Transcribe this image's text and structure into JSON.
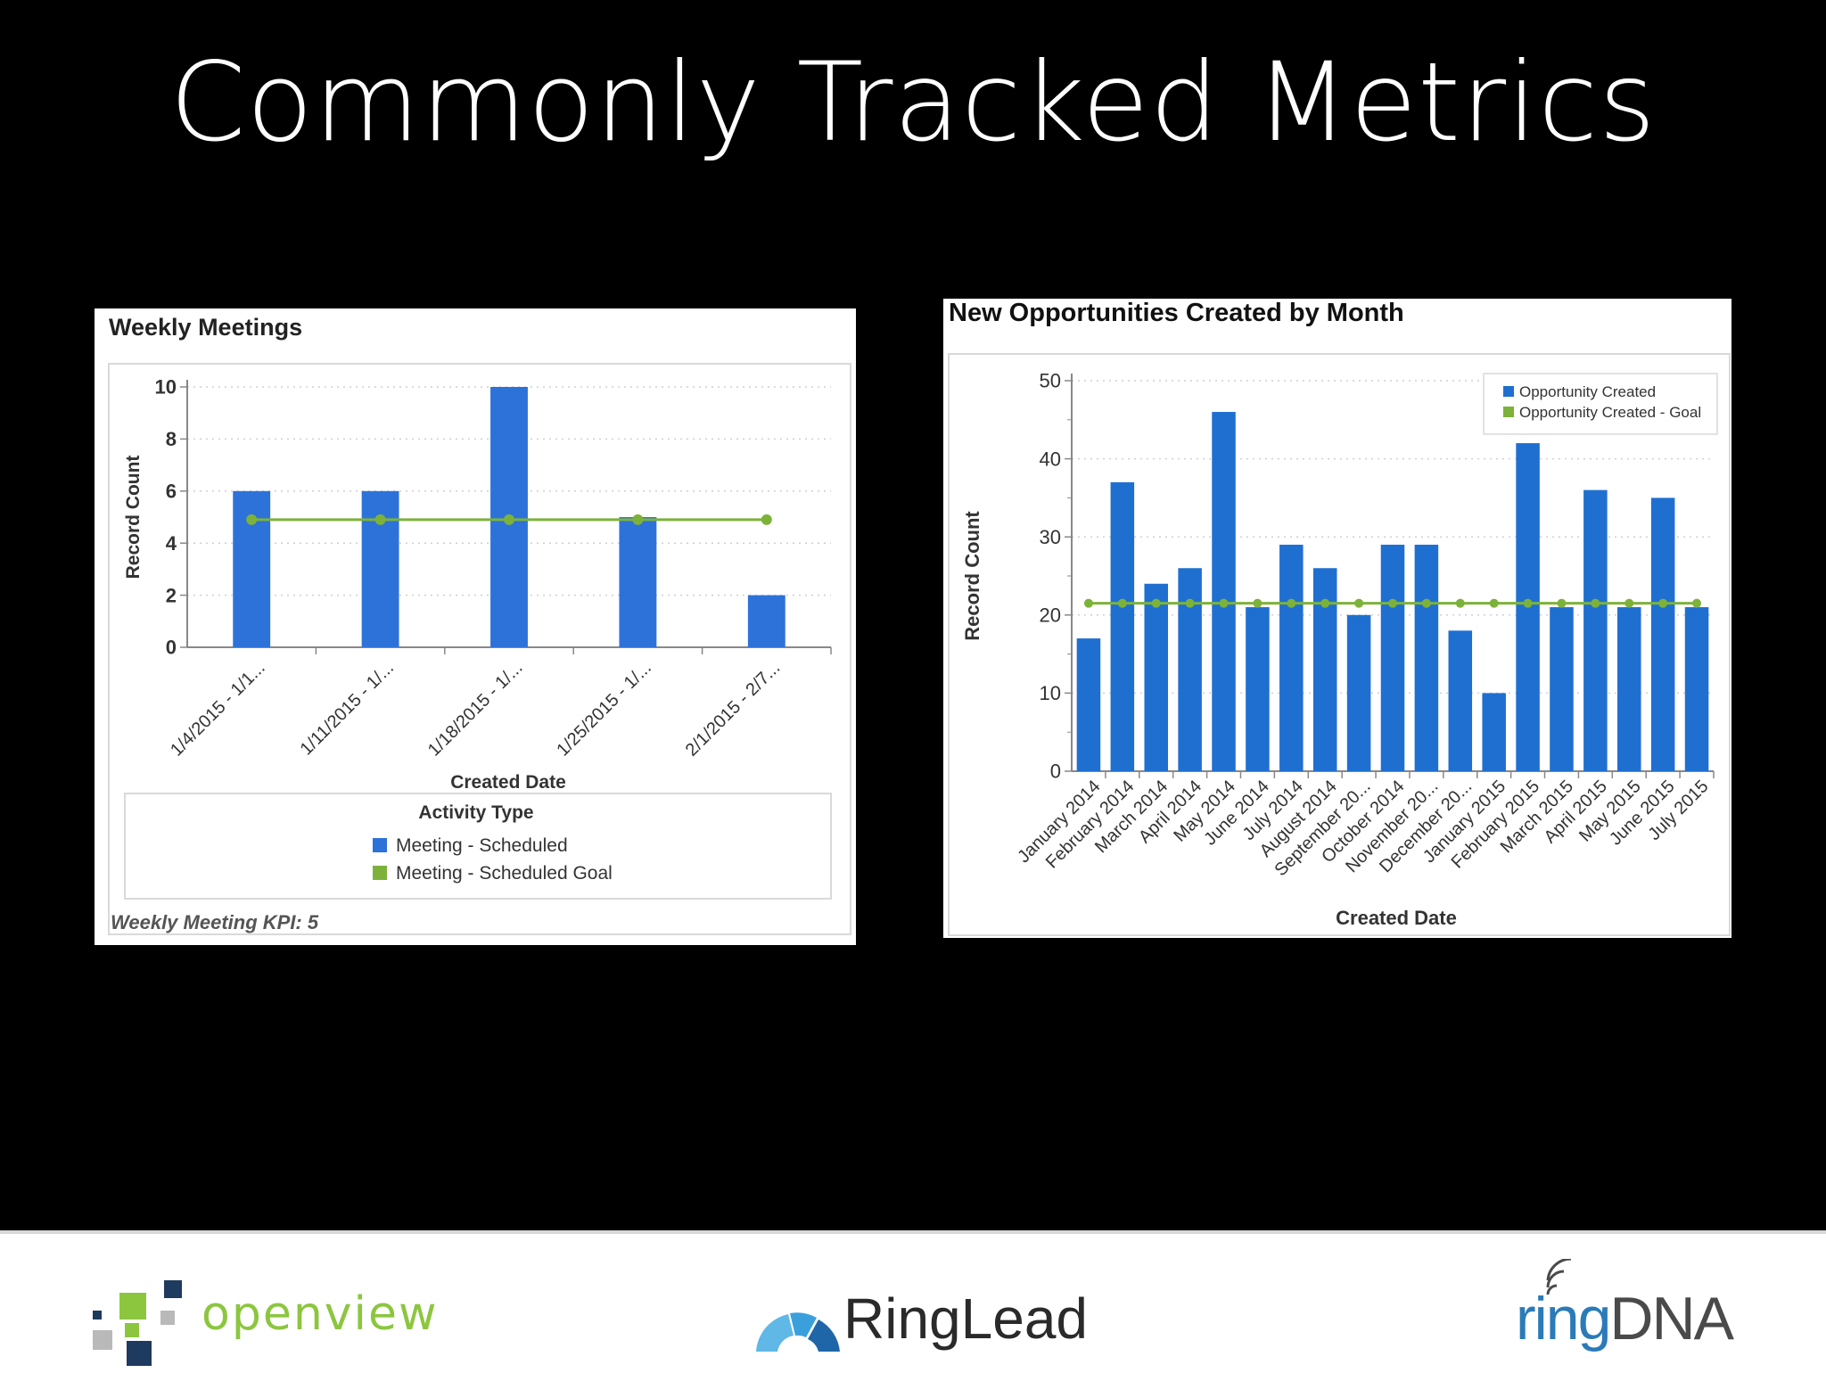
{
  "slide": {
    "title": "Commonly Tracked Metrics"
  },
  "left_chart": {
    "kpi_note": "Weekly Meeting KPI: 5"
  },
  "right_chart": {},
  "footer": {
    "openview": "openview",
    "ringlead": "RingLead",
    "ringdna_ring": "ring",
    "ringdna_dna": "DNA"
  },
  "colors": {
    "bar": "#2d72d9",
    "bar_right": "#1f6fd1",
    "goal": "#7db23a",
    "openview_green": "#8cc63f",
    "openview_navy": "#1f3a5f",
    "ringdna_blue": "#2a7bb8"
  },
  "chart_data": [
    {
      "type": "bar",
      "title": "Weekly Meetings",
      "categories": [
        "1/4/2015 - 1/1...",
        "1/11/2015 - 1/...",
        "1/18/2015 - 1/...",
        "1/25/2015 - 1/...",
        "2/1/2015 - 2/7..."
      ],
      "series": [
        {
          "name": "Meeting - Scheduled",
          "kind": "bar",
          "values": [
            6,
            6,
            10,
            5,
            2
          ]
        },
        {
          "name": "Meeting - Scheduled Goal",
          "kind": "line",
          "values": [
            4.9,
            4.9,
            4.9,
            4.9,
            4.9
          ]
        }
      ],
      "xlabel": "Created Date",
      "ylabel": "Record Count",
      "ylim": [
        0,
        10
      ],
      "yticks": [
        0,
        2,
        4,
        6,
        8,
        10
      ],
      "legend_title": "Activity Type",
      "legend_position": "bottom",
      "grid": true
    },
    {
      "type": "bar",
      "title": "New Opportunities Created by Month",
      "categories": [
        "January 2014",
        "February 2014",
        "March 2014",
        "April 2014",
        "May 2014",
        "June 2014",
        "July 2014",
        "August 2014",
        "September 20...",
        "October 2014",
        "November 20...",
        "December 20...",
        "January 2015",
        "February 2015",
        "March 2015",
        "April 2015",
        "May 2015",
        "June 2015",
        "July 2015"
      ],
      "series": [
        {
          "name": "Opportunity Created",
          "kind": "bar",
          "values": [
            17,
            37,
            24,
            26,
            46,
            21,
            29,
            26,
            20,
            29,
            29,
            18,
            10,
            42,
            21,
            36,
            21,
            35,
            21
          ]
        },
        {
          "name": "Opportunity Created - Goal",
          "kind": "line",
          "values": [
            21.5,
            21.5,
            21.5,
            21.5,
            21.5,
            21.5,
            21.5,
            21.5,
            21.5,
            21.5,
            21.5,
            21.5,
            21.5,
            21.5,
            21.5,
            21.5,
            21.5,
            21.5,
            21.5
          ]
        }
      ],
      "xlabel": "Created Date",
      "ylabel": "Record Count",
      "ylim": [
        0,
        50
      ],
      "yticks": [
        0,
        10,
        20,
        30,
        40,
        50
      ],
      "legend_position": "top-right",
      "grid": true
    }
  ]
}
